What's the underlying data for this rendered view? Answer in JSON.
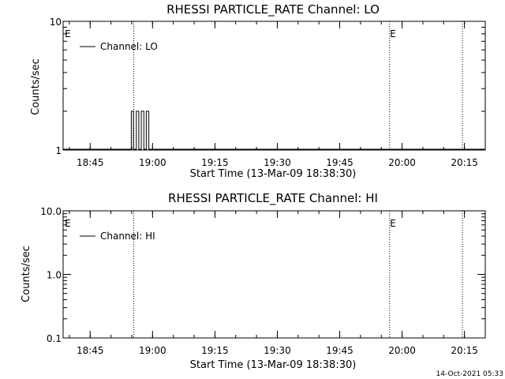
{
  "footer": {
    "timestamp": "14-Oct-2021 05:33"
  },
  "chart_data": [
    {
      "type": "line",
      "title": "RHESSI PARTICLE_RATE Channel: LO",
      "xlabel": "Start Time (13-Mar-09 18:38:30)",
      "ylabel": "Counts/sec",
      "yscale": "log",
      "ylim": [
        1,
        10
      ],
      "xlim_minutes_after_1838": [
        0,
        101.5
      ],
      "xticks": [
        {
          "label": "18:45",
          "min": 6.5
        },
        {
          "label": "19:00",
          "min": 21.5
        },
        {
          "label": "19:15",
          "min": 36.5
        },
        {
          "label": "19:30",
          "min": 51.5
        },
        {
          "label": "19:45",
          "min": 66.5
        },
        {
          "label": "20:00",
          "min": 81.5
        },
        {
          "label": "20:15",
          "min": 96.5
        }
      ],
      "yticks": [
        {
          "label": "1",
          "v": 1
        },
        {
          "label": "10",
          "v": 10
        }
      ],
      "legend": {
        "label": "Channel: LO",
        "placement": "top-left"
      },
      "markers": [
        {
          "label": "E",
          "min": 0.3
        },
        {
          "label": "E",
          "min": 78.5
        }
      ],
      "vlines_min": [
        17.0,
        78.5,
        96.0
      ],
      "series": [
        {
          "name": "Channel: LO",
          "points": [
            [
              0,
              1
            ],
            [
              16.4,
              1
            ],
            [
              16.4,
              2
            ],
            [
              16.9,
              2
            ],
            [
              16.9,
              1
            ],
            [
              17.6,
              1
            ],
            [
              17.6,
              2
            ],
            [
              18.2,
              2
            ],
            [
              18.2,
              1
            ],
            [
              18.8,
              1
            ],
            [
              18.8,
              2
            ],
            [
              19.4,
              2
            ],
            [
              19.4,
              1
            ],
            [
              20.0,
              1
            ],
            [
              20.0,
              2
            ],
            [
              20.6,
              2
            ],
            [
              20.6,
              1
            ],
            [
              101.5,
              1
            ]
          ]
        }
      ]
    },
    {
      "type": "line",
      "title": "RHESSI PARTICLE_RATE Channel: HI",
      "xlabel": "Start Time (13-Mar-09 18:38:30)",
      "ylabel": "Counts/sec",
      "yscale": "log",
      "ylim": [
        0.1,
        10
      ],
      "xlim_minutes_after_1838": [
        0,
        101.5
      ],
      "xticks": [
        {
          "label": "18:45",
          "min": 6.5
        },
        {
          "label": "19:00",
          "min": 21.5
        },
        {
          "label": "19:15",
          "min": 36.5
        },
        {
          "label": "19:30",
          "min": 51.5
        },
        {
          "label": "19:45",
          "min": 66.5
        },
        {
          "label": "20:00",
          "min": 81.5
        },
        {
          "label": "20:15",
          "min": 96.5
        }
      ],
      "yticks": [
        {
          "label": "0.1",
          "v": 0.1
        },
        {
          "label": "1.0",
          "v": 1
        },
        {
          "label": "10.0",
          "v": 10
        }
      ],
      "legend": {
        "label": "Channel: HI",
        "placement": "top-left"
      },
      "markers": [
        {
          "label": "E",
          "min": 0.3
        },
        {
          "label": "E",
          "min": 78.5
        }
      ],
      "vlines_min": [
        17.0,
        78.5,
        96.0
      ],
      "series": [
        {
          "name": "Channel: HI",
          "points": []
        }
      ]
    }
  ]
}
